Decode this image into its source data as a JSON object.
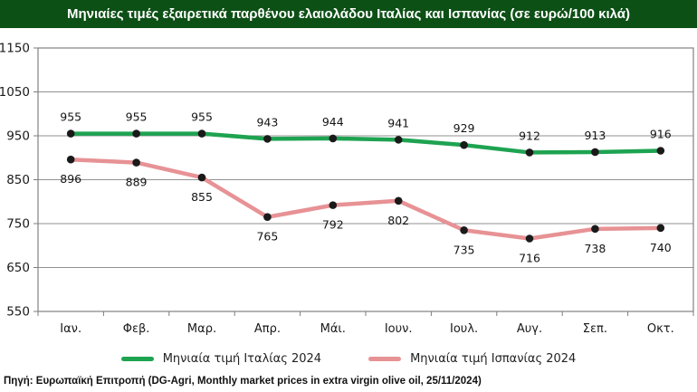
{
  "title": "Μηνιαίες τιμές εξαιρετικά παρθένου ελαιολάδου Ιταλίας και Ισπανίας (σε ευρώ/100 κιλά)",
  "source": "Πηγή: Ευρωπαϊκή Επιτροπή (DG-Agri, Monthly market prices in extra virgin olive oil, 25/11/2024)",
  "colors": {
    "title_bar_bg": "#0d5016",
    "title_text": "#ffffff",
    "grid": "#919191",
    "marker": "#1a1a1a",
    "italy_line": "#1ea351",
    "spain_line": "#e79295"
  },
  "chart_data": {
    "type": "line",
    "title": "Μηνιαίες τιμές εξαιρετικά παρθένου ελαιολάδου Ιταλίας και Ισπανίας (σε ευρώ/100 κιλά)",
    "categories": [
      "Ιαν.",
      "Φεβ.",
      "Μαρ.",
      "Απρ.",
      "Μάι.",
      "Ιουν.",
      "Ιουλ.",
      "Αυγ.",
      "Σεπ.",
      "Οκτ."
    ],
    "series": [
      {
        "name": "Μηνιαία τιμή Ιταλίας 2024",
        "color": "#1ea351",
        "values": [
          955,
          955,
          955,
          943,
          944,
          941,
          929,
          912,
          913,
          916
        ],
        "label_position": "above"
      },
      {
        "name": "Μηνιαία τιμή Ισπανίας 2024",
        "color": "#e79295",
        "values": [
          896,
          889,
          855,
          765,
          792,
          802,
          735,
          716,
          738,
          740
        ],
        "label_position": "below"
      }
    ],
    "ylim": [
      550,
      1150
    ],
    "ytick_step": 100,
    "grid": true,
    "legend_position": "bottom",
    "data_labels": true
  }
}
